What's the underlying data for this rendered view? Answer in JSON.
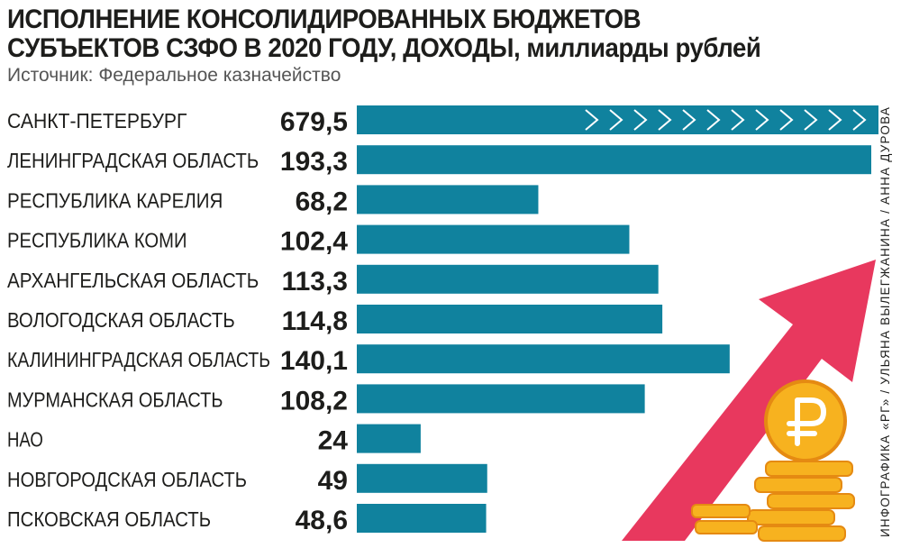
{
  "header": {
    "title_main": "ИСПОЛНЕНИЕ КОНСОЛИДИРОВАННЫХ БЮДЖЕТОВ СУБЪЕКТОВ СЗФО В 2020 ГОДУ, ДОХОДЫ,",
    "title_unit": "миллиарды рублей",
    "source": "Источник: Федеральное казначейство"
  },
  "credit": "ИНФОГРАФИКА «РГ» / УЛЬЯНА ВЫЛЕГЖАНИНА / АННА ДУРОВА",
  "colors": {
    "bar": "#10829e",
    "bar_overflow_marks": "#ffffff",
    "arrow": "#e8385e",
    "coin": "#f7b21f",
    "coin_dark": "#e58a12",
    "text": "#1d1d1b"
  },
  "chart_data": {
    "type": "bar",
    "orientation": "horizontal",
    "title": "ИСПОЛНЕНИЕ КОНСОЛИДИРОВАННЫХ БЮДЖЕТОВ СУБЪЕКТОВ СЗФО В 2020 ГОДУ, ДОХОДЫ, миллиарды рублей",
    "categories": [
      "САНКТ-ПЕТЕРБУРГ",
      "ЛЕНИНГРАДСКАЯ ОБЛАСТЬ",
      "РЕСПУБЛИКА КАРЕЛИЯ",
      "РЕСПУБЛИКА КОМИ",
      "АРХАНГЕЛЬСКАЯ ОБЛАСТЬ",
      "ВОЛОГОДСКАЯ ОБЛАСТЬ",
      "КАЛИНИНГРАДСКАЯ ОБЛАСТЬ",
      "МУРМАНСКАЯ ОБЛАСТЬ",
      "НАО",
      "НОВГОРОДСКАЯ ОБЛАСТЬ",
      "ПСКОВСКАЯ ОБЛАСТЬ"
    ],
    "values": [
      679.5,
      193.3,
      68.2,
      102.4,
      113.3,
      114.8,
      140.1,
      108.2,
      24,
      49,
      48.6
    ],
    "value_labels": [
      "679,5",
      "193,3",
      "68,2",
      "102,4",
      "113,3",
      "114,8",
      "140,1",
      "108,2",
      "24",
      "49",
      "48,6"
    ],
    "xlim": [
      0,
      193.3
    ],
    "truncated_bars": [
      "САНКТ-ПЕТЕРБУРГ"
    ],
    "grid": false,
    "legend": "none",
    "xlabel": "",
    "ylabel": ""
  }
}
